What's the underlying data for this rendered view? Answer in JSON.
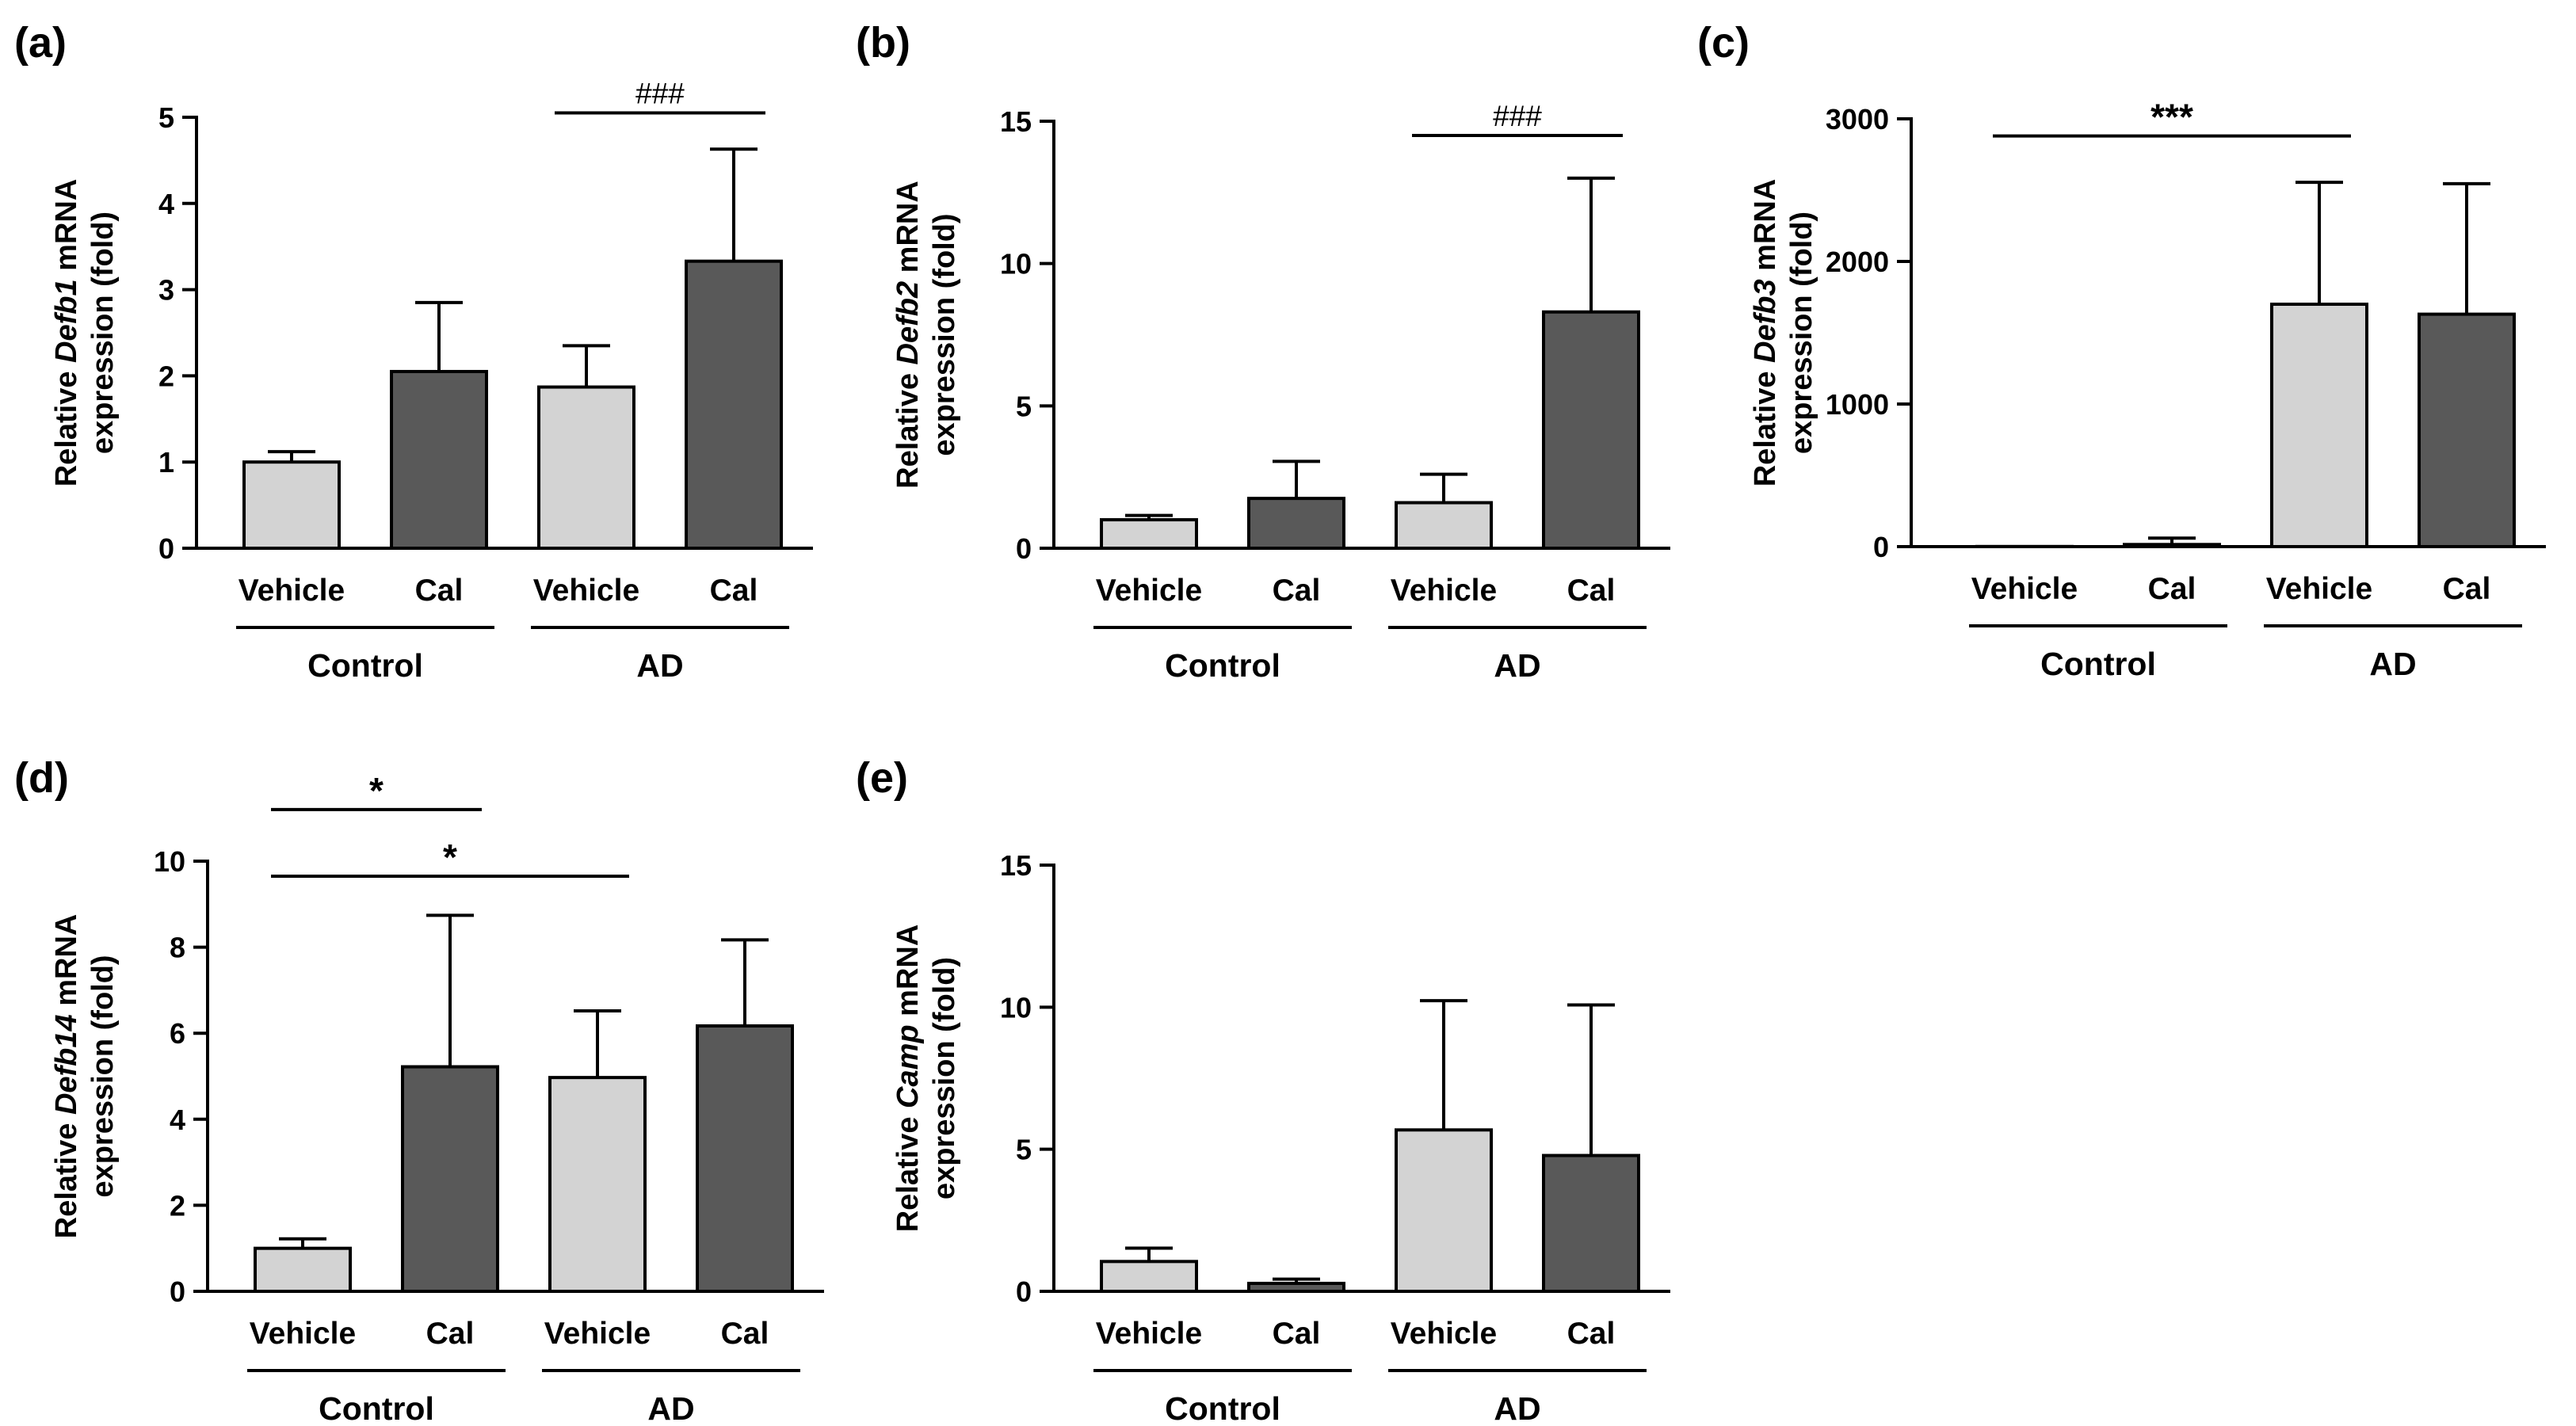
{
  "chart_data": [
    {
      "type": "bar",
      "panel_label": "(a)",
      "ylabel_prefix": "Relative ",
      "gene": "Defb1",
      "ylabel_suffix": " mRNA",
      "ylabel_line2": "expression (fold)",
      "categories": [
        "Vehicle",
        "Cal",
        "Vehicle",
        "Cal"
      ],
      "groups": [
        {
          "label": "Control",
          "from": 0,
          "to": 1
        },
        {
          "label": "AD",
          "from": 2,
          "to": 3
        }
      ],
      "values": [
        1.0,
        2.05,
        1.87,
        3.33
      ],
      "errors": [
        0.12,
        0.8,
        0.48,
        1.3
      ],
      "ylim": [
        0,
        5
      ],
      "yticks": [
        0,
        1,
        2,
        3,
        4,
        5
      ],
      "tick_labels": [
        "0",
        "1",
        "2",
        "3",
        "4",
        "5"
      ],
      "significance": [
        {
          "from": 2,
          "to": 3,
          "label": "###",
          "y": 5.05
        }
      ],
      "colors": [
        "#d3d3d3",
        "#595959",
        "#d3d3d3",
        "#595959"
      ]
    },
    {
      "type": "bar",
      "panel_label": "(b)",
      "ylabel_prefix": "Relative ",
      "gene": "Defb2",
      "ylabel_suffix": " mRNA",
      "ylabel_line2": "expression (fold)",
      "categories": [
        "Vehicle",
        "Cal",
        "Vehicle",
        "Cal"
      ],
      "groups": [
        {
          "label": "Control",
          "from": 0,
          "to": 1
        },
        {
          "label": "AD",
          "from": 2,
          "to": 3
        }
      ],
      "values": [
        1.0,
        1.75,
        1.6,
        8.3
      ],
      "errors": [
        0.15,
        1.3,
        1.0,
        4.7
      ],
      "ylim": [
        0,
        15
      ],
      "yticks": [
        0,
        5,
        10,
        15
      ],
      "tick_labels": [
        "0",
        "5",
        "10",
        "15"
      ],
      "significance": [
        {
          "from": 2,
          "to": 3,
          "label": "###",
          "y": 14.5
        }
      ],
      "colors": [
        "#d3d3d3",
        "#595959",
        "#d3d3d3",
        "#595959"
      ]
    },
    {
      "type": "bar",
      "panel_label": "(c)",
      "ylabel_prefix": "Relative ",
      "gene": "Defb3",
      "ylabel_suffix": " mRNA",
      "ylabel_line2": "expression (fold)",
      "categories": [
        "Vehicle",
        "Cal",
        "Vehicle",
        "Cal"
      ],
      "groups": [
        {
          "label": "Control",
          "from": 0,
          "to": 1
        },
        {
          "label": "AD",
          "from": 2,
          "to": 3
        }
      ],
      "values": [
        1,
        15,
        1700,
        1630
      ],
      "errors": [
        0,
        45,
        855,
        915
      ],
      "ylim": [
        0,
        3000
      ],
      "yticks": [
        0,
        1000,
        2000,
        3000
      ],
      "tick_labels": [
        "0",
        "1000",
        "2000",
        "3000"
      ],
      "significance": [
        {
          "from": 0,
          "to": 2,
          "label": "***",
          "y": 2880
        }
      ],
      "colors": [
        "#d3d3d3",
        "#595959",
        "#d3d3d3",
        "#595959"
      ]
    },
    {
      "type": "bar",
      "panel_label": "(d)",
      "ylabel_prefix": "Relative ",
      "gene": "Defb14",
      "ylabel_suffix": " mRNA",
      "ylabel_line2": "expression (fold)",
      "categories": [
        "Vehicle",
        "Cal",
        "Vehicle",
        "Cal"
      ],
      "groups": [
        {
          "label": "Control",
          "from": 0,
          "to": 1
        },
        {
          "label": "AD",
          "from": 2,
          "to": 3
        }
      ],
      "values": [
        1.0,
        5.22,
        4.97,
        6.17
      ],
      "errors": [
        0.22,
        3.52,
        1.55,
        2.0
      ],
      "ylim": [
        0,
        10
      ],
      "yticks": [
        0,
        2,
        4,
        6,
        8,
        10
      ],
      "tick_labels": [
        "0",
        "2",
        "4",
        "6",
        "8",
        "10"
      ],
      "significance": [
        {
          "from": 0,
          "to": 1,
          "label": "*",
          "y": 11.2
        },
        {
          "from": 0,
          "to": 2,
          "label": "*",
          "y": 9.65
        }
      ],
      "colors": [
        "#d3d3d3",
        "#595959",
        "#d3d3d3",
        "#595959"
      ]
    },
    {
      "type": "bar",
      "panel_label": "(e)",
      "ylabel_prefix": "Relative ",
      "gene": "Camp",
      "ylabel_suffix": " mRNA",
      "ylabel_line2": "expression (fold)",
      "categories": [
        "Vehicle",
        "Cal",
        "Vehicle",
        "Cal"
      ],
      "groups": [
        {
          "label": "Control",
          "from": 0,
          "to": 1
        },
        {
          "label": "AD",
          "from": 2,
          "to": 3
        }
      ],
      "values": [
        1.05,
        0.28,
        5.68,
        4.78
      ],
      "errors": [
        0.47,
        0.15,
        4.55,
        5.3
      ],
      "ylim": [
        0,
        15
      ],
      "yticks": [
        0,
        5,
        10,
        15
      ],
      "tick_labels": [
        "0",
        "5",
        "10",
        "15"
      ],
      "significance": [],
      "colors": [
        "#d3d3d3",
        "#595959",
        "#d3d3d3",
        "#595959"
      ]
    }
  ]
}
